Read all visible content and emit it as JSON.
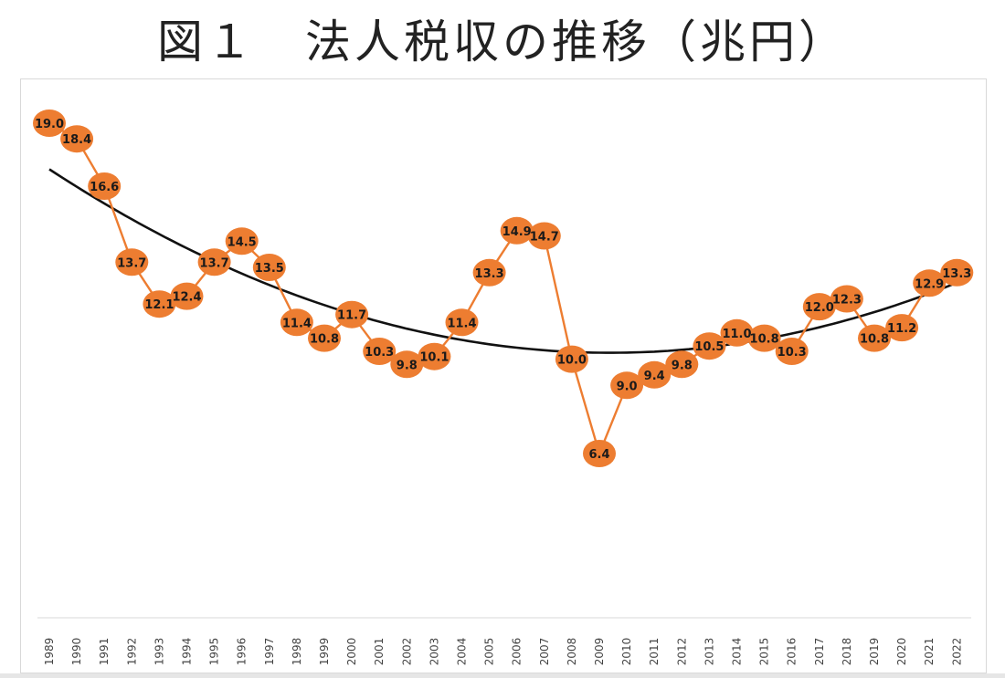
{
  "title": "図１　法人税収の推移（兆円）",
  "colors": {
    "series": "#ed7d31",
    "trend": "#111111",
    "label": "#1a1a1a",
    "axis_tick": "#444444"
  },
  "chart_data": {
    "type": "line",
    "title": "図１　法人税収の推移（兆円）",
    "xlabel": "",
    "ylabel": "",
    "categories": [
      "1989",
      "1990",
      "1991",
      "1992",
      "1993",
      "1994",
      "1995",
      "1996",
      "1997",
      "1998",
      "1999",
      "2000",
      "2001",
      "2002",
      "2003",
      "2004",
      "2005",
      "2006",
      "2007",
      "2008",
      "2009",
      "2010",
      "2011",
      "2012",
      "2013",
      "2014",
      "2015",
      "2016",
      "2017",
      "2018",
      "2019",
      "2020",
      "2021",
      "2022"
    ],
    "series": [
      {
        "values": [
          19.0,
          18.4,
          16.6,
          13.7,
          12.1,
          12.4,
          13.7,
          14.5,
          13.5,
          11.4,
          10.8,
          11.7,
          10.3,
          9.8,
          10.1,
          11.4,
          13.3,
          14.9,
          14.7,
          10.0,
          6.4,
          9.0,
          9.4,
          9.8,
          10.5,
          11.0,
          10.8,
          10.3,
          12.0,
          12.3,
          10.8,
          11.2,
          12.9,
          13.3
        ],
        "labels": [
          "19.0",
          "18.4",
          "16.6",
          "13.7",
          "12.1",
          "12.4",
          "13.7",
          "14.5",
          "13.5",
          "11.4",
          "10.8",
          "11.7",
          "10.3",
          "9.8",
          "10.1",
          "11.4",
          "13.3",
          "14.9",
          "14.7",
          "10.0",
          "6.4",
          "9.0",
          "9.4",
          "9.8",
          "10.5",
          "11.0",
          "10.8",
          "10.3",
          "12.0",
          "12.3",
          "10.8",
          "11.2",
          "12.9",
          "13.3"
        ],
        "marker": "circle",
        "data_labels": true
      }
    ],
    "trendline": {
      "type": "polynomial",
      "order": 2,
      "color": "black"
    },
    "ylim": [
      0,
      20
    ],
    "grid": false,
    "legend": "none"
  }
}
